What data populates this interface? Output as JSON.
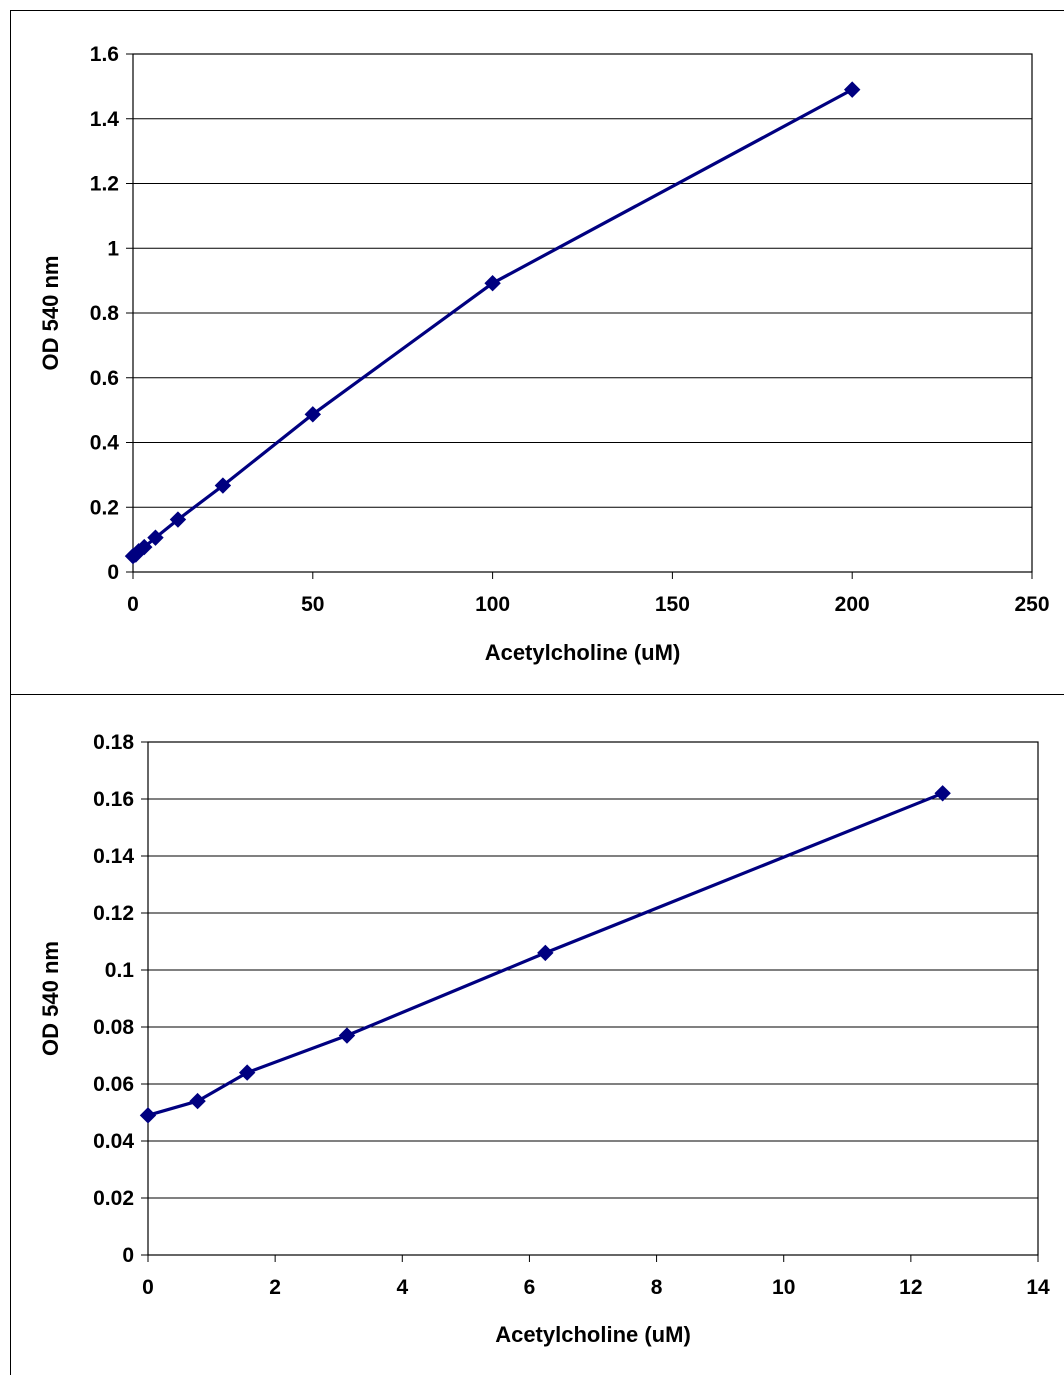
{
  "chart_data": [
    {
      "type": "line",
      "title": "",
      "xlabel": "Acetylcholine (uM)",
      "ylabel": "OD 540 nm",
      "xlim": [
        0,
        250
      ],
      "ylim": [
        0,
        1.6
      ],
      "xticks": [
        "0",
        "50",
        "100",
        "150",
        "200",
        "250"
      ],
      "yticks": [
        "0",
        "0.2",
        "0.4",
        "0.6",
        "0.8",
        "1",
        "1.2",
        "1.4",
        "1.6"
      ],
      "grid": "horizontal",
      "legend": "none",
      "series": [
        {
          "color": "#000080",
          "marker": "diamond",
          "x": [
            0,
            0.78,
            1.56,
            3.13,
            6.25,
            12.5,
            25,
            50,
            100,
            200
          ],
          "y": [
            0.049,
            0.054,
            0.064,
            0.077,
            0.106,
            0.162,
            0.267,
            0.487,
            0.892,
            1.49
          ]
        }
      ]
    },
    {
      "type": "line",
      "title": "",
      "xlabel": "Acetylcholine (uM)",
      "ylabel": "OD 540 nm",
      "xlim": [
        0,
        14
      ],
      "ylim": [
        0,
        0.18
      ],
      "xticks": [
        "0",
        "2",
        "4",
        "6",
        "8",
        "10",
        "12",
        "14"
      ],
      "yticks": [
        "0",
        "0.02",
        "0.04",
        "0.06",
        "0.08",
        "0.1",
        "0.12",
        "0.14",
        "0.16",
        "0.18"
      ],
      "grid": "horizontal",
      "legend": "none",
      "series": [
        {
          "color": "#000080",
          "marker": "diamond",
          "x": [
            0,
            0.78,
            1.56,
            3.13,
            6.25,
            12.5
          ],
          "y": [
            0.049,
            0.054,
            0.064,
            0.077,
            0.106,
            0.162
          ]
        }
      ]
    }
  ]
}
